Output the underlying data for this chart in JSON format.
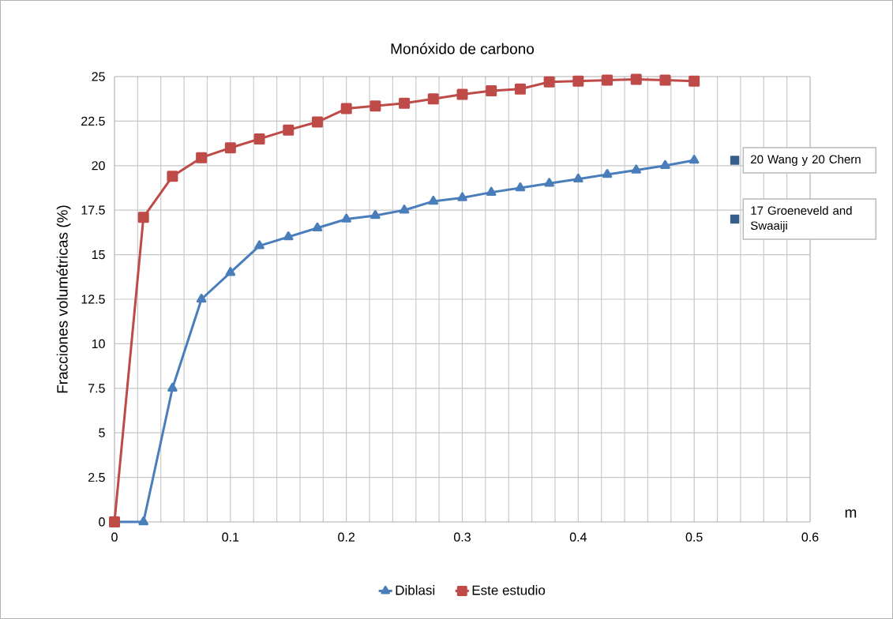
{
  "chart_data": {
    "type": "line",
    "title": "Monóxido de carbono",
    "xlabel": "m",
    "ylabel": "Fracciones volumétricas  (%)",
    "xlim": [
      0,
      0.6
    ],
    "xticks": [
      0,
      0.1,
      0.2,
      0.3,
      0.4,
      0.5,
      0.6
    ],
    "ylim": [
      0,
      25
    ],
    "yticks": [
      0,
      2.5,
      5,
      7.5,
      10,
      12.5,
      15,
      17.5,
      20,
      22.5,
      25
    ],
    "grid": true,
    "legend": "bottom",
    "series": [
      {
        "name": "Diblasi",
        "color": "#4a7ebb",
        "marker": "triangle",
        "x": [
          0,
          0.025,
          0.05,
          0.075,
          0.1,
          0.125,
          0.15,
          0.175,
          0.2,
          0.225,
          0.25,
          0.275,
          0.3,
          0.325,
          0.35,
          0.375,
          0.4,
          0.425,
          0.45,
          0.475,
          0.5
        ],
        "values": [
          0,
          0,
          7.5,
          12.5,
          14.0,
          15.5,
          16.0,
          16.5,
          17.0,
          17.2,
          17.5,
          18.0,
          18.2,
          18.5,
          18.75,
          19.0,
          19.25,
          19.5,
          19.75,
          20.0,
          20.3
        ]
      },
      {
        "name": "Este estudio",
        "color": "#be4b48",
        "marker": "square",
        "x": [
          0,
          0.025,
          0.05,
          0.075,
          0.1,
          0.125,
          0.15,
          0.175,
          0.2,
          0.225,
          0.25,
          0.275,
          0.3,
          0.325,
          0.35,
          0.375,
          0.4,
          0.425,
          0.45,
          0.475,
          0.5
        ],
        "values": [
          0,
          17.1,
          19.4,
          20.45,
          21.0,
          21.5,
          22.0,
          22.45,
          23.2,
          23.35,
          23.5,
          23.75,
          24.0,
          24.2,
          24.3,
          24.7,
          24.75,
          24.8,
          24.85,
          24.8,
          24.75
        ]
      },
      {
        "type": "scatter",
        "color": "#385d8a",
        "marker": "square",
        "x": [
          0.535,
          0.535
        ],
        "values": [
          20.3,
          17.0
        ]
      }
    ],
    "annotations": [
      {
        "text": "20 Wang  y  20 Chern",
        "x": 0.535,
        "y": 20.3
      },
      {
        "text": "17 Groeneveld and Swaaiji",
        "x": 0.535,
        "y": 17.0
      }
    ]
  }
}
